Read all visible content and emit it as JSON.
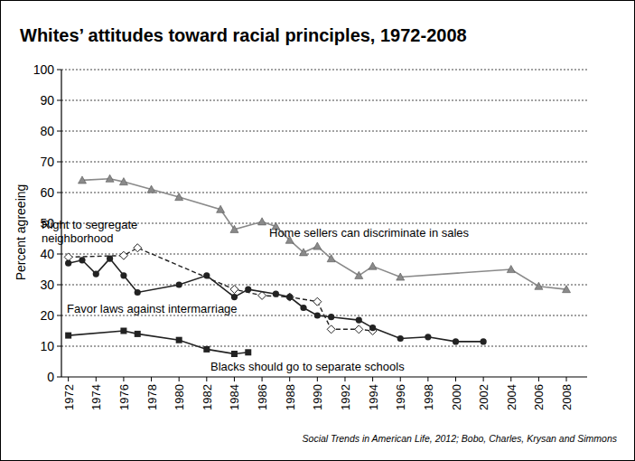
{
  "chart_data": {
    "type": "line",
    "title": "Whites’ attitudes toward racial principles, 1972-2008",
    "y_label": "Percent agreeing",
    "annotations": [
      "Social Trends in American Life, 2012; Bobo, Charles, Krysan and Simmons"
    ],
    "xlim": [
      1971.5,
      2009.5
    ],
    "xticks": [
      1972,
      1974,
      1976,
      1978,
      1980,
      1982,
      1984,
      1986,
      1988,
      1990,
      1992,
      1994,
      1996,
      1998,
      2000,
      2002,
      2004,
      2006,
      2008
    ],
    "ylim": [
      0,
      100
    ],
    "yticks": [
      0,
      10,
      20,
      30,
      40,
      50,
      60,
      70,
      80,
      90,
      100
    ],
    "grid": true,
    "series": [
      {
        "name": "Home sellers can discriminate in sales",
        "color": "#8a8a8a",
        "marker": "triangle",
        "line_style": "solid",
        "x": [
          1973,
          1975,
          1976,
          1978,
          1980,
          1983,
          1984,
          1986,
          1987,
          1988,
          1989,
          1990,
          1991,
          1993,
          1994,
          1996,
          2004,
          2006,
          2008
        ],
        "values": [
          64,
          64.5,
          63.5,
          61,
          58.5,
          54.5,
          48,
          50.5,
          49,
          44.5,
          40.5,
          42.5,
          38.5,
          33,
          36,
          32.5,
          35,
          29.5,
          28.5
        ]
      },
      {
        "name": "Right to segregate neighborhood",
        "color": "#222222",
        "marker": "open_diamond",
        "line_style": "dashed",
        "x": [
          1972,
          1976,
          1977,
          1984,
          1986,
          1988,
          1990,
          1991,
          1993,
          1994
        ],
        "values": [
          39,
          39.5,
          42,
          28.5,
          26.5,
          26,
          24.5,
          15.5,
          15.5,
          15
        ]
      },
      {
        "name": "Favor laws against intermarriage",
        "color": "#222222",
        "marker": "circle",
        "line_style": "solid",
        "x": [
          1972,
          1973,
          1974,
          1975,
          1976,
          1977,
          1980,
          1982,
          1984,
          1985,
          1987,
          1988,
          1989,
          1990,
          1991,
          1993,
          1994,
          1996,
          1998,
          2000,
          2002
        ],
        "values": [
          37,
          38,
          33.5,
          38.5,
          33,
          27.5,
          30,
          33,
          26,
          28.5,
          27,
          26,
          22.5,
          20,
          19.5,
          18.5,
          16,
          12.5,
          13,
          11.5,
          11.5
        ]
      },
      {
        "name": "Blacks should go to separate schools",
        "color": "#222222",
        "marker": "square",
        "line_style": "solid",
        "x": [
          1972,
          1976,
          1977,
          1980,
          1982,
          1984,
          1985
        ],
        "values": [
          13.5,
          15,
          14,
          12,
          9,
          7.5,
          8
        ]
      }
    ]
  }
}
